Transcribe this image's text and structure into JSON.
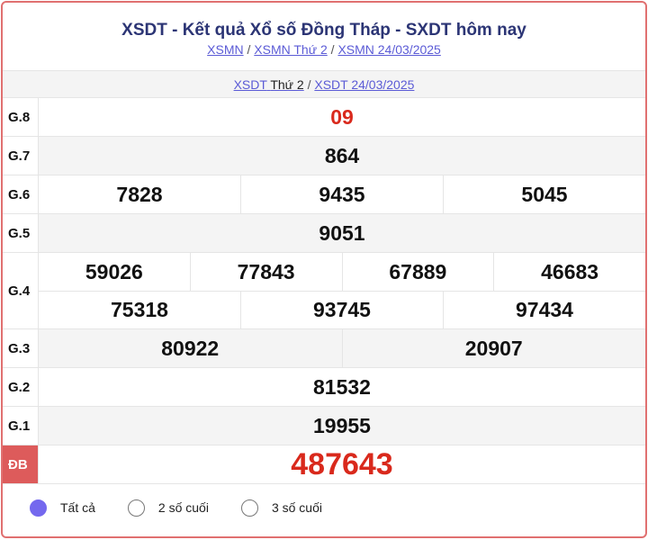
{
  "header": {
    "title": "XSDT - Kết quả Xổ số Đồng Tháp - SXDT hôm nay",
    "links": [
      "XSMN",
      "XSMN Thứ 2",
      "XSMN 24/03/2025"
    ]
  },
  "subheader": {
    "link1": "XSDT",
    "link1_plain": "Thứ 2",
    "link2": "XSDT 24/03/2025"
  },
  "prizes": [
    {
      "label": "G.8",
      "rows": [
        [
          "09"
        ]
      ],
      "red": true
    },
    {
      "label": "G.7",
      "rows": [
        [
          "864"
        ]
      ]
    },
    {
      "label": "G.6",
      "rows": [
        [
          "7828",
          "9435",
          "5045"
        ]
      ]
    },
    {
      "label": "G.5",
      "rows": [
        [
          "9051"
        ]
      ]
    },
    {
      "label": "G.4",
      "rows": [
        [
          "59026",
          "77843",
          "67889",
          "46683"
        ],
        [
          "75318",
          "93745",
          "97434"
        ]
      ]
    },
    {
      "label": "G.3",
      "rows": [
        [
          "80922",
          "20907"
        ]
      ]
    },
    {
      "label": "G.2",
      "rows": [
        [
          "81532"
        ]
      ]
    },
    {
      "label": "G.1",
      "rows": [
        [
          "19955"
        ]
      ]
    },
    {
      "label": "ĐB",
      "rows": [
        [
          "487643"
        ]
      ],
      "red": true,
      "special": true
    }
  ],
  "filters": [
    {
      "label": "Tất cả",
      "selected": true
    },
    {
      "label": "2 số cuối",
      "selected": false
    },
    {
      "label": "3 số cuối",
      "selected": false
    }
  ],
  "colors": {
    "accent": "#7468ee",
    "prize_red": "#d9291c",
    "special_label_bg": "#dd5b5b",
    "title": "#2c3575"
  }
}
